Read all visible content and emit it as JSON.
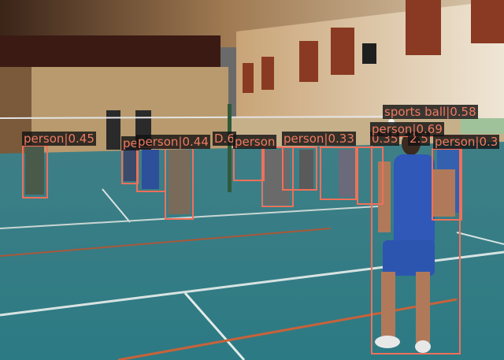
{
  "image": {
    "description_free": true,
    "accent_color": "#f0705a"
  },
  "detections": [
    {
      "label": "person",
      "score": "0.45",
      "text": "person|0.45"
    },
    {
      "label": "person",
      "score": "",
      "text": "pe"
    },
    {
      "label": "person",
      "score": "0.44",
      "text": "person|0.44"
    },
    {
      "label": "person",
      "score": "",
      "text": "D.6"
    },
    {
      "label": "person",
      "score": "",
      "text": "person"
    },
    {
      "label": "person",
      "score": "0.33",
      "text": "person|0.33"
    },
    {
      "label": "person",
      "score": "0.35",
      "text": "0.35"
    },
    {
      "label": "person",
      "score": "",
      "text": "2.5"
    },
    {
      "label": "person",
      "score": "0.69",
      "text": "person|0.69"
    },
    {
      "label": "sports ball",
      "score": "0.58",
      "text": "sports ball|0.58"
    },
    {
      "label": "person",
      "score": "0.3",
      "text": "person|0.3"
    }
  ]
}
